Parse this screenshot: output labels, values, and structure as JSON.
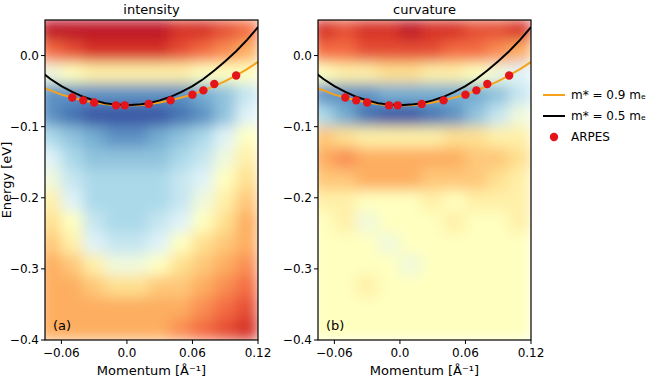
{
  "chart_data": [
    {
      "type": "heatmap",
      "title": "intensity",
      "annotation": "(a)",
      "x_label": "Momentum [Å⁻¹]",
      "y_label": "Energy [eV]",
      "xlim": [
        -0.075,
        0.12
      ],
      "ylim": [
        -0.4,
        0.05
      ],
      "zlim": [
        0,
        1
      ],
      "xticks": [
        {
          "value": -0.06,
          "label": "−0.06"
        },
        {
          "value": 0,
          "label": "0.0"
        },
        {
          "value": 0.06,
          "label": "0.06"
        },
        {
          "value": 0.12,
          "label": "0.12"
        }
      ],
      "yticks": [
        {
          "value": 0,
          "label": "0.0"
        },
        {
          "value": -0.1,
          "label": "−0.1"
        },
        {
          "value": -0.2,
          "label": "−0.2"
        },
        {
          "value": -0.3,
          "label": "−0.3"
        },
        {
          "value": -0.4,
          "label": "−0.4"
        }
      ],
      "legend": "right",
      "cell_x": [
        -0.07,
        -0.05,
        -0.03,
        -0.01,
        0.01,
        0.03,
        0.05,
        0.07,
        0.09,
        0.11
      ],
      "cell_y": [
        0.035,
        0.005,
        -0.025,
        -0.055,
        -0.085,
        -0.115,
        -0.145,
        -0.175,
        -0.205,
        -0.235,
        -0.265,
        -0.295,
        -0.325,
        -0.355,
        -0.385
      ],
      "cells": [
        [
          0.05,
          0.05,
          0.05,
          0.05,
          0.05,
          0.05,
          0.1,
          0.1,
          0.15,
          0.2
        ],
        [
          0.2,
          0.15,
          0.1,
          0.1,
          0.1,
          0.1,
          0.15,
          0.2,
          0.25,
          0.3
        ],
        [
          0.55,
          0.5,
          0.45,
          0.45,
          0.45,
          0.45,
          0.45,
          0.5,
          0.5,
          0.5
        ],
        [
          0.85,
          0.85,
          0.85,
          0.85,
          0.85,
          0.85,
          0.85,
          0.8,
          0.75,
          0.65
        ],
        [
          0.85,
          0.9,
          0.95,
          0.95,
          0.95,
          0.95,
          0.9,
          0.85,
          0.75,
          0.6
        ],
        [
          0.7,
          0.75,
          0.8,
          0.85,
          0.85,
          0.8,
          0.75,
          0.7,
          0.6,
          0.5
        ],
        [
          0.6,
          0.7,
          0.75,
          0.75,
          0.75,
          0.75,
          0.7,
          0.65,
          0.55,
          0.45
        ],
        [
          0.55,
          0.65,
          0.7,
          0.7,
          0.7,
          0.7,
          0.65,
          0.6,
          0.5,
          0.4
        ],
        [
          0.45,
          0.6,
          0.7,
          0.7,
          0.7,
          0.7,
          0.65,
          0.55,
          0.45,
          0.35
        ],
        [
          0.4,
          0.5,
          0.65,
          0.7,
          0.7,
          0.65,
          0.6,
          0.5,
          0.4,
          0.3
        ],
        [
          0.35,
          0.45,
          0.6,
          0.65,
          0.65,
          0.6,
          0.5,
          0.4,
          0.35,
          0.3
        ],
        [
          0.3,
          0.35,
          0.45,
          0.55,
          0.55,
          0.5,
          0.4,
          0.35,
          0.3,
          0.25
        ],
        [
          0.3,
          0.3,
          0.35,
          0.4,
          0.4,
          0.35,
          0.35,
          0.3,
          0.25,
          0.2
        ],
        [
          0.3,
          0.3,
          0.3,
          0.3,
          0.3,
          0.3,
          0.3,
          0.25,
          0.2,
          0.15
        ],
        [
          0.3,
          0.3,
          0.3,
          0.3,
          0.3,
          0.3,
          0.25,
          0.2,
          0.15,
          0.1
        ]
      ],
      "series": [
        {
          "name": "m* = 0.9 mₑ",
          "color": "#f7a21b",
          "type": "line",
          "line_style": "solid",
          "x": [
            -0.08,
            -0.07,
            -0.06,
            -0.05,
            -0.04,
            -0.03,
            -0.02,
            -0.01,
            0,
            0.01,
            0.02,
            0.03,
            0.04,
            0.05,
            0.06,
            0.07,
            0.08,
            0.09,
            0.1,
            0.11,
            0.12
          ],
          "values": [
            -0.043,
            -0.049,
            -0.055,
            -0.059,
            -0.063,
            -0.066,
            -0.068,
            -0.07,
            -0.07,
            -0.07,
            -0.068,
            -0.066,
            -0.063,
            -0.059,
            -0.055,
            -0.049,
            -0.043,
            -0.036,
            -0.028,
            -0.019,
            -0.009
          ]
        },
        {
          "name": "m* = 0.5 mₑ",
          "color": "#000000",
          "type": "line",
          "line_style": "solid",
          "x": [
            -0.08,
            -0.07,
            -0.06,
            -0.05,
            -0.04,
            -0.03,
            -0.02,
            -0.01,
            0,
            0.01,
            0.02,
            0.03,
            0.04,
            0.05,
            0.06,
            0.07,
            0.08,
            0.09,
            0.1,
            0.11,
            0.12
          ],
          "values": [
            -0.021,
            -0.033,
            -0.043,
            -0.051,
            -0.058,
            -0.063,
            -0.067,
            -0.069,
            -0.07,
            -0.069,
            -0.067,
            -0.063,
            -0.058,
            -0.051,
            -0.043,
            -0.033,
            -0.021,
            -0.008,
            0.006,
            0.022,
            0.04
          ]
        },
        {
          "name": "ARPES",
          "color": "#e3151b",
          "type": "scatter",
          "marker": "circle",
          "x": [
            -0.05,
            -0.04,
            -0.03,
            -0.01,
            -0.002,
            0.02,
            0.04,
            0.06,
            0.07,
            0.08,
            0.1
          ],
          "values": [
            -0.059,
            -0.063,
            -0.066,
            -0.07,
            -0.07,
            -0.068,
            -0.063,
            -0.055,
            -0.049,
            -0.04,
            -0.028
          ]
        }
      ]
    },
    {
      "type": "heatmap",
      "title": "curvature",
      "annotation": "(b)",
      "x_label": "Momentum [Å⁻¹]",
      "xlim": [
        -0.075,
        0.12
      ],
      "ylim": [
        -0.4,
        0.05
      ],
      "zlim": [
        0,
        1
      ],
      "xticks": [
        {
          "value": -0.06,
          "label": "−0.06"
        },
        {
          "value": 0,
          "label": "0.0"
        },
        {
          "value": 0.06,
          "label": "0.06"
        },
        {
          "value": 0.12,
          "label": "0.12"
        }
      ],
      "yticks": [
        {
          "value": 0,
          "label": "0.0"
        },
        {
          "value": -0.1,
          "label": "−0.1"
        },
        {
          "value": -0.2,
          "label": "−0.2"
        },
        {
          "value": -0.3,
          "label": "−0.3"
        },
        {
          "value": -0.4,
          "label": "−0.4"
        }
      ],
      "cell_x": [
        -0.07,
        -0.05,
        -0.03,
        -0.01,
        0.01,
        0.03,
        0.05,
        0.07,
        0.09,
        0.11
      ],
      "cell_y": [
        0.035,
        0.005,
        -0.025,
        -0.055,
        -0.085,
        -0.115,
        -0.145,
        -0.175,
        -0.205,
        -0.235,
        -0.265,
        -0.295,
        -0.325,
        -0.355,
        -0.385
      ],
      "cells": [
        [
          0.1,
          0.15,
          0.1,
          0.1,
          0.05,
          0.1,
          0.1,
          0.15,
          0.15,
          0.1
        ],
        [
          0.2,
          0.2,
          0.15,
          0.15,
          0.15,
          0.15,
          0.2,
          0.2,
          0.25,
          0.3
        ],
        [
          0.5,
          0.45,
          0.45,
          0.4,
          0.4,
          0.45,
          0.45,
          0.5,
          0.55,
          0.6
        ],
        [
          0.85,
          0.85,
          0.85,
          0.8,
          0.8,
          0.8,
          0.8,
          0.8,
          0.75,
          0.65
        ],
        [
          0.7,
          0.8,
          0.9,
          0.95,
          0.95,
          0.9,
          0.85,
          0.75,
          0.65,
          0.55
        ],
        [
          0.35,
          0.4,
          0.45,
          0.45,
          0.45,
          0.45,
          0.4,
          0.4,
          0.45,
          0.45
        ],
        [
          0.3,
          0.25,
          0.3,
          0.3,
          0.3,
          0.3,
          0.3,
          0.35,
          0.35,
          0.4
        ],
        [
          0.35,
          0.35,
          0.3,
          0.3,
          0.3,
          0.35,
          0.35,
          0.35,
          0.4,
          0.45
        ],
        [
          0.45,
          0.45,
          0.5,
          0.5,
          0.5,
          0.45,
          0.5,
          0.45,
          0.45,
          0.45
        ],
        [
          0.5,
          0.45,
          0.55,
          0.5,
          0.5,
          0.5,
          0.45,
          0.5,
          0.5,
          0.45
        ],
        [
          0.5,
          0.5,
          0.5,
          0.55,
          0.5,
          0.5,
          0.5,
          0.5,
          0.5,
          0.5
        ],
        [
          0.5,
          0.5,
          0.5,
          0.5,
          0.55,
          0.5,
          0.5,
          0.5,
          0.5,
          0.5
        ],
        [
          0.5,
          0.5,
          0.45,
          0.5,
          0.5,
          0.5,
          0.5,
          0.5,
          0.5,
          0.5
        ],
        [
          0.5,
          0.5,
          0.5,
          0.5,
          0.5,
          0.5,
          0.5,
          0.5,
          0.5,
          0.5
        ],
        [
          0.5,
          0.5,
          0.5,
          0.5,
          0.5,
          0.5,
          0.5,
          0.5,
          0.5,
          0.5
        ]
      ],
      "series": [
        {
          "color": "#f7a21b",
          "type": "line",
          "line_style": "solid",
          "x": [
            -0.08,
            -0.07,
            -0.06,
            -0.05,
            -0.04,
            -0.03,
            -0.02,
            -0.01,
            0,
            0.01,
            0.02,
            0.03,
            0.04,
            0.05,
            0.06,
            0.07,
            0.08,
            0.09,
            0.1,
            0.11,
            0.12
          ],
          "values": [
            -0.043,
            -0.049,
            -0.055,
            -0.059,
            -0.063,
            -0.066,
            -0.068,
            -0.07,
            -0.07,
            -0.07,
            -0.068,
            -0.066,
            -0.063,
            -0.059,
            -0.055,
            -0.049,
            -0.043,
            -0.036,
            -0.028,
            -0.019,
            -0.009
          ]
        },
        {
          "color": "#000000",
          "type": "line",
          "line_style": "solid",
          "x": [
            -0.08,
            -0.07,
            -0.06,
            -0.05,
            -0.04,
            -0.03,
            -0.02,
            -0.01,
            0,
            0.01,
            0.02,
            0.03,
            0.04,
            0.05,
            0.06,
            0.07,
            0.08,
            0.09,
            0.1,
            0.11,
            0.12
          ],
          "values": [
            -0.021,
            -0.033,
            -0.043,
            -0.051,
            -0.058,
            -0.063,
            -0.067,
            -0.069,
            -0.07,
            -0.069,
            -0.067,
            -0.063,
            -0.058,
            -0.051,
            -0.043,
            -0.033,
            -0.021,
            -0.008,
            0.006,
            0.022,
            0.04
          ]
        },
        {
          "color": "#e3151b",
          "type": "scatter",
          "marker": "circle",
          "x": [
            -0.05,
            -0.04,
            -0.03,
            -0.01,
            -0.002,
            0.02,
            0.04,
            0.06,
            0.07,
            0.08,
            0.1
          ],
          "values": [
            -0.059,
            -0.063,
            -0.066,
            -0.07,
            -0.07,
            -0.068,
            -0.063,
            -0.055,
            -0.049,
            -0.04,
            -0.028
          ]
        }
      ]
    }
  ]
}
